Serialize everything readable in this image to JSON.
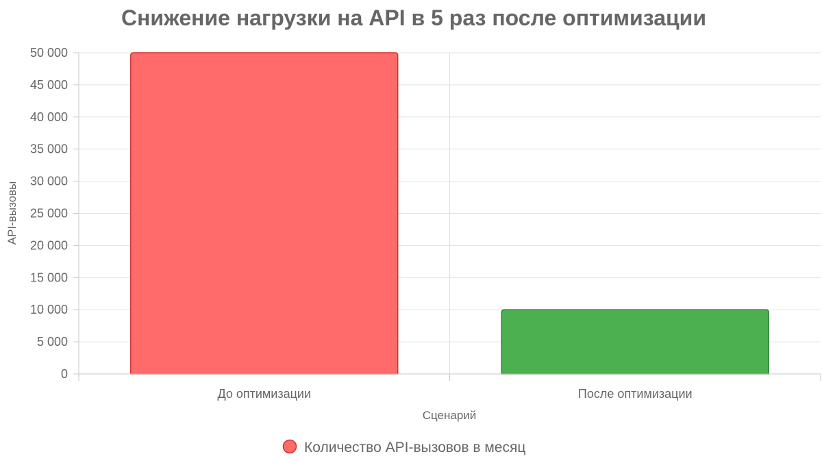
{
  "chart_data": {
    "type": "bar",
    "title": "Снижение нагрузки на API в 5 раз после оптимизации",
    "xlabel": "Сценарий",
    "ylabel": "API-вызовы",
    "categories": [
      "До оптимизации",
      "После оптимизации"
    ],
    "series": [
      {
        "name": "Количество API-вызовов в месяц",
        "values": [
          50000,
          10000
        ],
        "colors": [
          "#ff6b6b",
          "#4caf50"
        ],
        "border_colors": [
          "#d32f2f",
          "#2e7d32"
        ]
      }
    ],
    "ylim": [
      0,
      50000
    ],
    "yticks": [
      0,
      5000,
      10000,
      15000,
      20000,
      25000,
      30000,
      35000,
      40000,
      45000,
      50000
    ],
    "ytick_labels": [
      "0",
      "5 000",
      "10 000",
      "15 000",
      "20 000",
      "25 000",
      "30 000",
      "35 000",
      "40 000",
      "45 000",
      "50 000"
    ],
    "grid": true,
    "legend": {
      "position": "bottom",
      "label": "Количество API-вызовов в месяц",
      "swatch_color": "#ff6b6b",
      "swatch_border": "#d32f2f"
    }
  }
}
